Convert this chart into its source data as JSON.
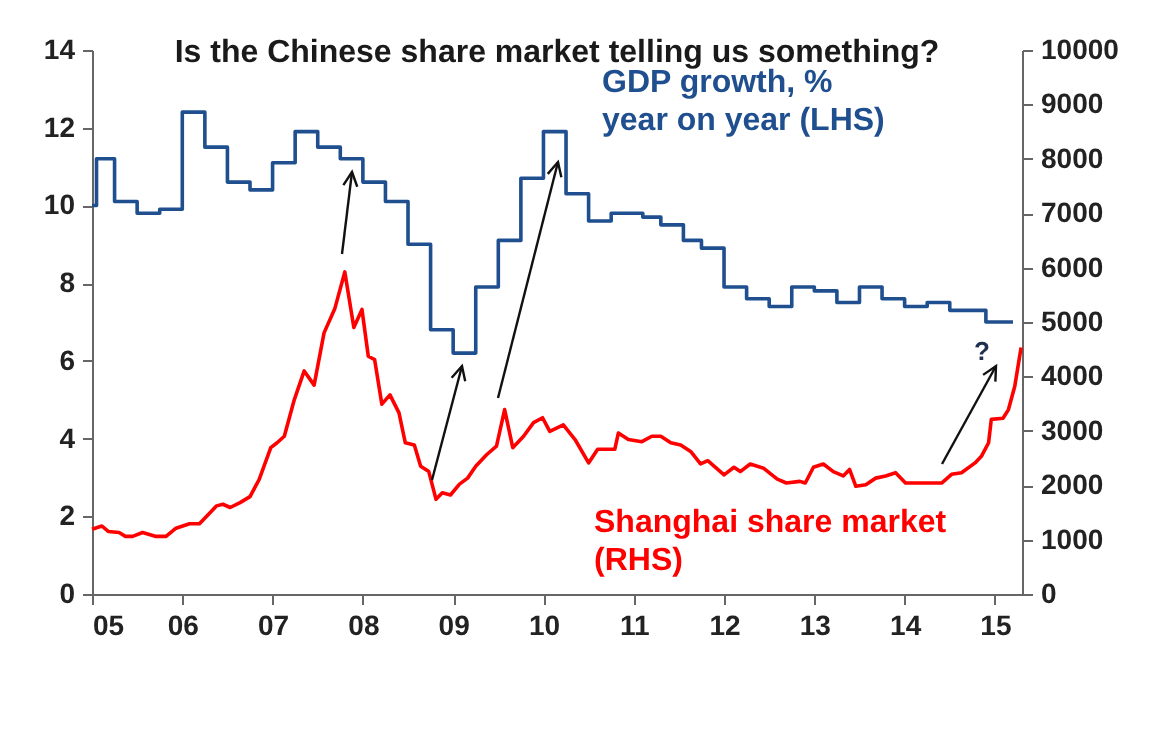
{
  "chart_data": {
    "type": "line",
    "title": "Is the Chinese share market telling us something?",
    "xlim": [
      2005,
      2015.3
    ],
    "xticks": [
      {
        "value": 2005,
        "label": "05"
      },
      {
        "value": 2006,
        "label": "06"
      },
      {
        "value": 2007,
        "label": "07"
      },
      {
        "value": 2008,
        "label": "08"
      },
      {
        "value": 2009,
        "label": "09"
      },
      {
        "value": 2010,
        "label": "10"
      },
      {
        "value": 2011,
        "label": "11"
      },
      {
        "value": 2012,
        "label": "12"
      },
      {
        "value": 2013,
        "label": "13"
      },
      {
        "value": 2014,
        "label": "14"
      },
      {
        "value": 2015,
        "label": "15"
      }
    ],
    "ylim": [
      0,
      14
    ],
    "yticks": [
      0,
      2,
      4,
      6,
      8,
      10,
      12,
      14
    ],
    "y2lim": [
      0,
      10000
    ],
    "y2ticks": [
      0,
      1000,
      2000,
      3000,
      4000,
      5000,
      6000,
      7000,
      8000,
      9000,
      10000
    ],
    "grid": false,
    "legend": false,
    "annotations": [
      "?"
    ],
    "series": [
      {
        "name": "GDP growth, %\nyear on year (LHS)",
        "type": "step",
        "color": "#1f4f8f",
        "x": [
          2005.0,
          2005.05,
          2005.25,
          2005.5,
          2005.75,
          2006.0,
          2006.25,
          2006.5,
          2006.75,
          2007.0,
          2007.25,
          2007.5,
          2007.75,
          2008.0,
          2008.25,
          2008.5,
          2008.75,
          2009.0,
          2009.25,
          2009.5,
          2009.75,
          2010.0,
          2010.25,
          2010.5,
          2010.75,
          2011.1,
          2011.3,
          2011.55,
          2011.75,
          2012.0,
          2012.25,
          2012.5,
          2012.75,
          2013.0,
          2013.25,
          2013.5,
          2013.75,
          2014.0,
          2014.25,
          2014.5,
          2014.9,
          2015.2
        ],
        "values": [
          10.0,
          11.2,
          10.1,
          9.8,
          9.9,
          12.4,
          11.5,
          10.6,
          10.4,
          11.1,
          11.9,
          11.5,
          11.2,
          10.6,
          10.1,
          9.0,
          6.8,
          6.2,
          7.9,
          9.1,
          10.7,
          11.9,
          10.3,
          9.6,
          9.8,
          9.7,
          9.5,
          9.1,
          8.9,
          7.9,
          7.6,
          7.4,
          7.9,
          7.8,
          7.5,
          7.9,
          7.6,
          7.4,
          7.5,
          7.3,
          7.0,
          7.0
        ]
      },
      {
        "name": "Shanghai share market\n(RHS)",
        "axis": "y2",
        "color": "#ff0000",
        "x": [
          2005.0,
          2005.11,
          2005.18,
          2005.3,
          2005.37,
          2005.45,
          2005.56,
          2005.7,
          2005.82,
          2005.93,
          2006.08,
          2006.19,
          2006.27,
          2006.38,
          2006.45,
          2006.53,
          2006.64,
          2006.75,
          2006.85,
          2006.98,
          2007.05,
          2007.13,
          2007.24,
          2007.35,
          2007.46,
          2007.57,
          2007.69,
          2007.8,
          2007.9,
          2007.99,
          2008.06,
          2008.13,
          2008.21,
          2008.3,
          2008.4,
          2008.47,
          2008.57,
          2008.64,
          2008.73,
          2008.81,
          2008.88,
          2008.97,
          2009.07,
          2009.16,
          2009.25,
          2009.37,
          2009.48,
          2009.57,
          2009.66,
          2009.78,
          2009.89,
          2009.99,
          2010.07,
          2010.22,
          2010.35,
          2010.5,
          2010.6,
          2010.79,
          2010.83,
          2010.94,
          2011.09,
          2011.2,
          2011.3,
          2011.41,
          2011.52,
          2011.63,
          2011.74,
          2011.82,
          2012.0,
          2012.11,
          2012.18,
          2012.29,
          2012.44,
          2012.59,
          2012.69,
          2012.84,
          2012.9,
          2012.99,
          2013.1,
          2013.21,
          2013.32,
          2013.39,
          2013.46,
          2013.57,
          2013.68,
          2013.79,
          2013.9,
          2014.01,
          2014.19,
          2014.41,
          2014.52,
          2014.63,
          2014.78,
          2014.85,
          2014.93,
          2014.96,
          2015.09,
          2015.15,
          2015.22,
          2015.29
        ],
        "values": [
          1190,
          1250,
          1150,
          1130,
          1060,
          1060,
          1130,
          1060,
          1060,
          1210,
          1290,
          1290,
          1430,
          1620,
          1650,
          1590,
          1680,
          1790,
          2100,
          2690,
          2780,
          2900,
          3570,
          4100,
          3840,
          4800,
          5250,
          5920,
          4900,
          5230,
          4370,
          4310,
          3490,
          3660,
          3330,
          2780,
          2740,
          2350,
          2250,
          1740,
          1860,
          1820,
          2020,
          2130,
          2350,
          2560,
          2720,
          3390,
          2690,
          2900,
          3150,
          3240,
          2990,
          3110,
          2840,
          2410,
          2660,
          2660,
          2960,
          2840,
          2800,
          2900,
          2900,
          2780,
          2740,
          2620,
          2390,
          2450,
          2190,
          2330,
          2250,
          2390,
          2310,
          2110,
          2040,
          2070,
          2040,
          2330,
          2390,
          2250,
          2170,
          2290,
          1980,
          2010,
          2130,
          2170,
          2230,
          2040,
          2040,
          2040,
          2200,
          2230,
          2410,
          2530,
          2780,
          3210,
          3230,
          3390,
          3820,
          4530
        ]
      }
    ]
  }
}
